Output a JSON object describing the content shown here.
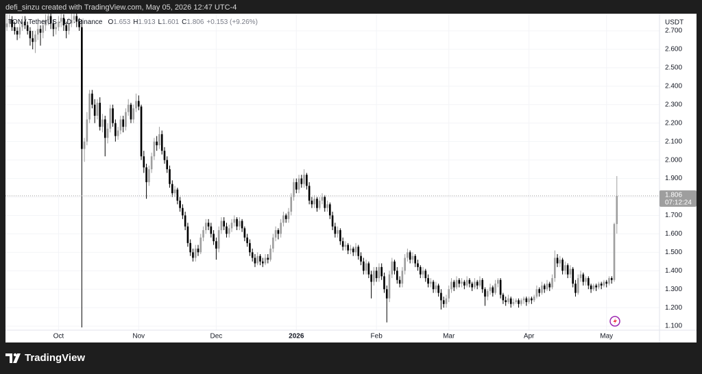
{
  "header": "defi_sinzu created with TradingView.com, May 05, 2026 12:47 UTC-4",
  "brand": "TradingView",
  "chart_data": {
    "type": "candlestick",
    "legend": {
      "symbol": "TON / TetherUS · 1D · Binance",
      "ohlc": [
        {
          "key": "O",
          "value": 1.653
        },
        {
          "key": "H",
          "value": 1.913
        },
        {
          "key": "L",
          "value": 1.601
        },
        {
          "key": "C",
          "value": 1.806
        }
      ],
      "change": "+0.153 (+9.26%)"
    },
    "currency": "USDT",
    "price_tag": {
      "price": 1.806,
      "countdown": "07:12:24"
    },
    "up_color": "#9e9e9e",
    "down_color": "#000000",
    "grid": true,
    "xlim": [
      0,
      252.5
    ],
    "xticks": [
      {
        "value": 20,
        "label": "Oct"
      },
      {
        "value": 51,
        "label": "Nov"
      },
      {
        "value": 81,
        "label": "Dec"
      },
      {
        "value": 112,
        "label": "2026"
      },
      {
        "value": 143,
        "label": "Feb"
      },
      {
        "value": 171,
        "label": "Mar"
      },
      {
        "value": 202,
        "label": "Apr"
      },
      {
        "value": 232,
        "label": "May"
      }
    ],
    "ylim": [
      1.078,
      2.793
    ],
    "yticks": [
      {
        "value": 1.1,
        "label": "1.100"
      },
      {
        "value": 1.2,
        "label": "1.200"
      },
      {
        "value": 1.3,
        "label": "1.300"
      },
      {
        "value": 1.4,
        "label": "1.400"
      },
      {
        "value": 1.5,
        "label": "1.500"
      },
      {
        "value": 1.6,
        "label": "1.600"
      },
      {
        "value": 1.7,
        "label": "1.700"
      },
      {
        "value": 1.8,
        "label": "1.800"
      },
      {
        "value": 1.9,
        "label": "1.900"
      },
      {
        "value": 2.0,
        "label": "2.000"
      },
      {
        "value": 2.1,
        "label": "2.100"
      },
      {
        "value": 2.2,
        "label": "2.200"
      },
      {
        "value": 2.3,
        "label": "2.300"
      },
      {
        "value": 2.4,
        "label": "2.400"
      },
      {
        "value": 2.5,
        "label": "2.500"
      },
      {
        "value": 2.6,
        "label": "2.600"
      },
      {
        "value": 2.7,
        "label": "2.700"
      }
    ],
    "ohlc": [
      [
        2.72,
        2.79,
        2.7,
        2.74
      ],
      [
        2.74,
        2.79,
        2.72,
        2.76
      ],
      [
        2.76,
        2.78,
        2.7,
        2.72
      ],
      [
        2.72,
        2.75,
        2.68,
        2.7
      ],
      [
        2.7,
        2.72,
        2.65,
        2.68
      ],
      [
        2.68,
        2.74,
        2.66,
        2.72
      ],
      [
        2.72,
        2.78,
        2.7,
        2.75
      ],
      [
        2.75,
        2.78,
        2.71,
        2.73
      ],
      [
        2.73,
        2.75,
        2.68,
        2.7
      ],
      [
        2.7,
        2.72,
        2.62,
        2.66
      ],
      [
        2.66,
        2.7,
        2.6,
        2.64
      ],
      [
        2.64,
        2.7,
        2.58,
        2.68
      ],
      [
        2.68,
        2.74,
        2.65,
        2.71
      ],
      [
        2.71,
        2.73,
        2.62,
        2.69
      ],
      [
        2.69,
        2.76,
        2.66,
        2.73
      ],
      [
        2.73,
        2.79,
        2.7,
        2.76
      ],
      [
        2.76,
        2.8,
        2.73,
        2.78
      ],
      [
        2.78,
        2.8,
        2.71,
        2.74
      ],
      [
        2.74,
        2.76,
        2.67,
        2.71
      ],
      [
        2.71,
        2.75,
        2.68,
        2.72
      ],
      [
        2.72,
        2.78,
        2.7,
        2.75
      ],
      [
        2.75,
        2.8,
        2.72,
        2.77
      ],
      [
        2.77,
        2.79,
        2.7,
        2.73
      ],
      [
        2.73,
        2.75,
        2.66,
        2.7
      ],
      [
        2.7,
        2.77,
        2.68,
        2.74
      ],
      [
        2.74,
        2.8,
        2.72,
        2.76
      ],
      [
        2.76,
        2.8,
        2.74,
        2.78
      ],
      [
        2.78,
        2.8,
        2.72,
        2.75
      ],
      [
        2.75,
        2.77,
        2.7,
        2.72
      ],
      [
        2.72,
        2.76,
        1.093,
        2.06
      ],
      [
        2.06,
        2.12,
        1.99,
        2.1
      ],
      [
        2.1,
        2.26,
        2.08,
        2.22
      ],
      [
        2.22,
        2.38,
        2.2,
        2.36
      ],
      [
        2.36,
        2.38,
        2.28,
        2.3
      ],
      [
        2.3,
        2.33,
        2.2,
        2.24
      ],
      [
        2.24,
        2.33,
        2.22,
        2.31
      ],
      [
        2.31,
        2.34,
        2.16,
        2.18
      ],
      [
        2.18,
        2.25,
        2.15,
        2.22
      ],
      [
        2.22,
        2.24,
        2.02,
        2.12
      ],
      [
        2.12,
        2.2,
        2.09,
        2.17
      ],
      [
        2.17,
        2.3,
        2.15,
        2.28
      ],
      [
        2.28,
        2.3,
        2.18,
        2.2
      ],
      [
        2.2,
        2.22,
        2.1,
        2.13
      ],
      [
        2.13,
        2.18,
        2.11,
        2.16
      ],
      [
        2.16,
        2.24,
        2.14,
        2.22
      ],
      [
        2.22,
        2.24,
        2.15,
        2.18
      ],
      [
        2.18,
        2.28,
        2.16,
        2.26
      ],
      [
        2.26,
        2.33,
        2.24,
        2.3
      ],
      [
        2.3,
        2.31,
        2.2,
        2.22
      ],
      [
        2.22,
        2.3,
        2.2,
        2.28
      ],
      [
        2.28,
        2.36,
        2.26,
        2.32
      ],
      [
        2.32,
        2.35,
        2.27,
        2.29
      ],
      [
        2.29,
        2.3,
        2.0,
        2.02
      ],
      [
        2.02,
        2.05,
        1.93,
        1.96
      ],
      [
        1.96,
        1.98,
        1.79,
        1.88
      ],
      [
        1.88,
        1.97,
        1.86,
        1.95
      ],
      [
        1.95,
        2.04,
        1.93,
        2.02
      ],
      [
        2.02,
        2.12,
        2.0,
        2.1
      ],
      [
        2.1,
        2.13,
        2.05,
        2.08
      ],
      [
        2.08,
        2.18,
        2.06,
        2.14
      ],
      [
        2.14,
        2.16,
        2.03,
        2.05
      ],
      [
        2.05,
        2.07,
        1.98,
        2.0
      ],
      [
        2.0,
        2.02,
        1.93,
        1.95
      ],
      [
        1.95,
        1.97,
        1.85,
        1.87
      ],
      [
        1.87,
        1.89,
        1.8,
        1.82
      ],
      [
        1.82,
        1.86,
        1.8,
        1.84
      ],
      [
        1.84,
        1.85,
        1.76,
        1.78
      ],
      [
        1.78,
        1.8,
        1.72,
        1.74
      ],
      [
        1.74,
        1.76,
        1.68,
        1.7
      ],
      [
        1.7,
        1.72,
        1.62,
        1.64
      ],
      [
        1.64,
        1.66,
        1.53,
        1.55
      ],
      [
        1.55,
        1.57,
        1.48,
        1.5
      ],
      [
        1.5,
        1.52,
        1.45,
        1.47
      ],
      [
        1.47,
        1.54,
        1.45,
        1.52
      ],
      [
        1.52,
        1.54,
        1.48,
        1.5
      ],
      [
        1.5,
        1.6,
        1.49,
        1.58
      ],
      [
        1.58,
        1.64,
        1.56,
        1.62
      ],
      [
        1.62,
        1.68,
        1.6,
        1.66
      ],
      [
        1.66,
        1.68,
        1.62,
        1.64
      ],
      [
        1.64,
        1.66,
        1.58,
        1.6
      ],
      [
        1.6,
        1.62,
        1.54,
        1.56
      ],
      [
        1.56,
        1.58,
        1.46,
        1.52
      ],
      [
        1.52,
        1.64,
        1.5,
        1.62
      ],
      [
        1.62,
        1.69,
        1.6,
        1.67
      ],
      [
        1.67,
        1.69,
        1.62,
        1.64
      ],
      [
        1.64,
        1.66,
        1.58,
        1.6
      ],
      [
        1.6,
        1.65,
        1.58,
        1.63
      ],
      [
        1.63,
        1.68,
        1.61,
        1.66
      ],
      [
        1.66,
        1.7,
        1.64,
        1.68
      ],
      [
        1.68,
        1.69,
        1.62,
        1.64
      ],
      [
        1.64,
        1.69,
        1.62,
        1.67
      ],
      [
        1.67,
        1.68,
        1.61,
        1.63
      ],
      [
        1.63,
        1.64,
        1.56,
        1.58
      ],
      [
        1.58,
        1.6,
        1.53,
        1.55
      ],
      [
        1.55,
        1.57,
        1.48,
        1.5
      ],
      [
        1.5,
        1.52,
        1.45,
        1.47
      ],
      [
        1.47,
        1.49,
        1.42,
        1.44
      ],
      [
        1.44,
        1.5,
        1.43,
        1.48
      ],
      [
        1.48,
        1.49,
        1.43,
        1.45
      ],
      [
        1.45,
        1.47,
        1.42,
        1.44
      ],
      [
        1.44,
        1.49,
        1.43,
        1.47
      ],
      [
        1.47,
        1.49,
        1.44,
        1.46
      ],
      [
        1.46,
        1.54,
        1.45,
        1.52
      ],
      [
        1.52,
        1.6,
        1.5,
        1.58
      ],
      [
        1.58,
        1.64,
        1.56,
        1.62
      ],
      [
        1.62,
        1.63,
        1.57,
        1.6
      ],
      [
        1.6,
        1.68,
        1.58,
        1.66
      ],
      [
        1.66,
        1.72,
        1.64,
        1.7
      ],
      [
        1.7,
        1.71,
        1.66,
        1.68
      ],
      [
        1.68,
        1.74,
        1.66,
        1.72
      ],
      [
        1.72,
        1.82,
        1.7,
        1.8
      ],
      [
        1.8,
        1.9,
        1.78,
        1.88
      ],
      [
        1.88,
        1.9,
        1.82,
        1.84
      ],
      [
        1.84,
        1.92,
        1.82,
        1.9
      ],
      [
        1.9,
        1.92,
        1.85,
        1.87
      ],
      [
        1.87,
        1.95,
        1.85,
        1.92
      ],
      [
        1.92,
        1.93,
        1.84,
        1.86
      ],
      [
        1.86,
        1.88,
        1.76,
        1.78
      ],
      [
        1.78,
        1.8,
        1.74,
        1.76
      ],
      [
        1.76,
        1.81,
        1.74,
        1.79
      ],
      [
        1.79,
        1.8,
        1.72,
        1.74
      ],
      [
        1.74,
        1.8,
        1.73,
        1.78
      ],
      [
        1.78,
        1.82,
        1.76,
        1.8
      ],
      [
        1.8,
        1.81,
        1.72,
        1.74
      ],
      [
        1.74,
        1.78,
        1.72,
        1.76
      ],
      [
        1.76,
        1.77,
        1.68,
        1.7
      ],
      [
        1.7,
        1.72,
        1.62,
        1.64
      ],
      [
        1.64,
        1.66,
        1.58,
        1.6
      ],
      [
        1.6,
        1.64,
        1.58,
        1.62
      ],
      [
        1.62,
        1.63,
        1.54,
        1.56
      ],
      [
        1.56,
        1.58,
        1.51,
        1.53
      ],
      [
        1.53,
        1.56,
        1.51,
        1.54
      ],
      [
        1.54,
        1.55,
        1.49,
        1.51
      ],
      [
        1.51,
        1.54,
        1.49,
        1.52
      ],
      [
        1.52,
        1.53,
        1.48,
        1.5
      ],
      [
        1.5,
        1.55,
        1.48,
        1.53
      ],
      [
        1.53,
        1.54,
        1.46,
        1.48
      ],
      [
        1.48,
        1.5,
        1.43,
        1.45
      ],
      [
        1.45,
        1.47,
        1.38,
        1.4
      ],
      [
        1.4,
        1.46,
        1.38,
        1.44
      ],
      [
        1.44,
        1.45,
        1.36,
        1.38
      ],
      [
        1.38,
        1.4,
        1.25,
        1.34
      ],
      [
        1.34,
        1.42,
        1.32,
        1.4
      ],
      [
        1.4,
        1.42,
        1.34,
        1.36
      ],
      [
        1.36,
        1.44,
        1.34,
        1.42
      ],
      [
        1.42,
        1.44,
        1.35,
        1.37
      ],
      [
        1.37,
        1.39,
        1.28,
        1.3
      ],
      [
        1.3,
        1.32,
        1.12,
        1.25
      ],
      [
        1.25,
        1.4,
        1.23,
        1.38
      ],
      [
        1.38,
        1.47,
        1.36,
        1.45
      ],
      [
        1.45,
        1.46,
        1.38,
        1.4
      ],
      [
        1.4,
        1.42,
        1.33,
        1.35
      ],
      [
        1.35,
        1.37,
        1.31,
        1.33
      ],
      [
        1.33,
        1.42,
        1.31,
        1.4
      ],
      [
        1.4,
        1.49,
        1.38,
        1.47
      ],
      [
        1.47,
        1.52,
        1.45,
        1.5
      ],
      [
        1.5,
        1.51,
        1.44,
        1.46
      ],
      [
        1.46,
        1.5,
        1.44,
        1.48
      ],
      [
        1.48,
        1.49,
        1.42,
        1.44
      ],
      [
        1.44,
        1.46,
        1.4,
        1.42
      ],
      [
        1.42,
        1.43,
        1.36,
        1.38
      ],
      [
        1.38,
        1.42,
        1.36,
        1.4
      ],
      [
        1.4,
        1.41,
        1.34,
        1.36
      ],
      [
        1.36,
        1.38,
        1.31,
        1.33
      ],
      [
        1.33,
        1.36,
        1.31,
        1.34
      ],
      [
        1.34,
        1.35,
        1.28,
        1.3
      ],
      [
        1.3,
        1.34,
        1.28,
        1.32
      ],
      [
        1.32,
        1.33,
        1.26,
        1.28
      ],
      [
        1.28,
        1.3,
        1.19,
        1.24
      ],
      [
        1.24,
        1.26,
        1.2,
        1.22
      ],
      [
        1.22,
        1.27,
        1.2,
        1.25
      ],
      [
        1.25,
        1.32,
        1.23,
        1.3
      ],
      [
        1.3,
        1.36,
        1.28,
        1.34
      ],
      [
        1.34,
        1.35,
        1.29,
        1.31
      ],
      [
        1.31,
        1.37,
        1.3,
        1.35
      ],
      [
        1.35,
        1.36,
        1.31,
        1.33
      ],
      [
        1.33,
        1.36,
        1.31,
        1.34
      ],
      [
        1.34,
        1.35,
        1.3,
        1.32
      ],
      [
        1.32,
        1.37,
        1.31,
        1.35
      ],
      [
        1.35,
        1.36,
        1.31,
        1.33
      ],
      [
        1.33,
        1.34,
        1.29,
        1.31
      ],
      [
        1.31,
        1.36,
        1.3,
        1.34
      ],
      [
        1.34,
        1.35,
        1.3,
        1.32
      ],
      [
        1.32,
        1.37,
        1.31,
        1.35
      ],
      [
        1.35,
        1.36,
        1.28,
        1.3
      ],
      [
        1.3,
        1.31,
        1.21,
        1.26
      ],
      [
        1.26,
        1.3,
        1.24,
        1.29
      ],
      [
        1.29,
        1.33,
        1.27,
        1.31
      ],
      [
        1.31,
        1.32,
        1.26,
        1.28
      ],
      [
        1.28,
        1.35,
        1.27,
        1.33
      ],
      [
        1.33,
        1.36,
        1.31,
        1.35
      ],
      [
        1.35,
        1.36,
        1.25,
        1.27
      ],
      [
        1.27,
        1.28,
        1.22,
        1.24
      ],
      [
        1.24,
        1.26,
        1.21,
        1.23
      ],
      [
        1.23,
        1.27,
        1.22,
        1.25
      ],
      [
        1.25,
        1.26,
        1.2,
        1.22
      ],
      [
        1.22,
        1.25,
        1.21,
        1.23
      ],
      [
        1.23,
        1.25,
        1.22,
        1.24
      ],
      [
        1.24,
        1.25,
        1.2,
        1.22
      ],
      [
        1.22,
        1.25,
        1.21,
        1.24
      ],
      [
        1.24,
        1.26,
        1.22,
        1.25
      ],
      [
        1.25,
        1.26,
        1.21,
        1.23
      ],
      [
        1.23,
        1.26,
        1.22,
        1.25
      ],
      [
        1.25,
        1.26,
        1.22,
        1.24
      ],
      [
        1.24,
        1.27,
        1.23,
        1.26
      ],
      [
        1.26,
        1.32,
        1.25,
        1.3
      ],
      [
        1.3,
        1.31,
        1.26,
        1.28
      ],
      [
        1.28,
        1.34,
        1.27,
        1.32
      ],
      [
        1.32,
        1.33,
        1.28,
        1.3
      ],
      [
        1.3,
        1.35,
        1.29,
        1.33
      ],
      [
        1.33,
        1.34,
        1.29,
        1.31
      ],
      [
        1.31,
        1.38,
        1.3,
        1.36
      ],
      [
        1.36,
        1.51,
        1.34,
        1.47
      ],
      [
        1.47,
        1.49,
        1.42,
        1.44
      ],
      [
        1.44,
        1.48,
        1.42,
        1.46
      ],
      [
        1.46,
        1.47,
        1.38,
        1.4
      ],
      [
        1.4,
        1.45,
        1.38,
        1.43
      ],
      [
        1.43,
        1.44,
        1.36,
        1.38
      ],
      [
        1.38,
        1.43,
        1.36,
        1.41
      ],
      [
        1.41,
        1.42,
        1.31,
        1.33
      ],
      [
        1.33,
        1.35,
        1.26,
        1.28
      ],
      [
        1.28,
        1.38,
        1.27,
        1.36
      ],
      [
        1.36,
        1.4,
        1.34,
        1.38
      ],
      [
        1.38,
        1.39,
        1.32,
        1.34
      ],
      [
        1.34,
        1.37,
        1.32,
        1.36
      ],
      [
        1.36,
        1.37,
        1.3,
        1.32
      ],
      [
        1.32,
        1.33,
        1.28,
        1.3
      ],
      [
        1.3,
        1.33,
        1.29,
        1.32
      ],
      [
        1.32,
        1.33,
        1.29,
        1.31
      ],
      [
        1.31,
        1.34,
        1.3,
        1.33
      ],
      [
        1.33,
        1.34,
        1.3,
        1.32
      ],
      [
        1.32,
        1.35,
        1.31,
        1.34
      ],
      [
        1.34,
        1.35,
        1.31,
        1.33
      ],
      [
        1.33,
        1.37,
        1.32,
        1.36
      ],
      [
        1.36,
        1.37,
        1.33,
        1.35
      ],
      [
        1.35,
        1.66,
        1.34,
        1.653
      ],
      [
        1.653,
        1.913,
        1.601,
        1.806
      ]
    ]
  }
}
